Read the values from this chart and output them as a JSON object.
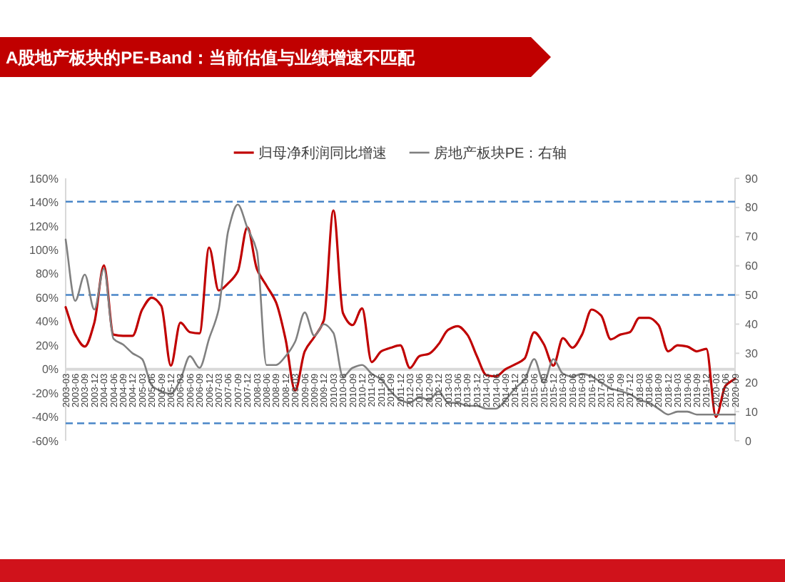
{
  "chart_data": {
    "type": "line",
    "title": "A股地产板块的PE-Band：当前估值与业绩增速不匹配",
    "categories": [
      "2003-03",
      "2003-06",
      "2003-09",
      "2003-12",
      "2004-03",
      "2004-06",
      "2004-09",
      "2004-12",
      "2005-03",
      "2005-06",
      "2005-09",
      "2005-12",
      "2006-03",
      "2006-06",
      "2006-09",
      "2006-12",
      "2007-03",
      "2007-06",
      "2007-09",
      "2007-12",
      "2008-03",
      "2008-06",
      "2008-09",
      "2008-12",
      "2009-03",
      "2009-06",
      "2009-09",
      "2009-12",
      "2010-03",
      "2010-06",
      "2010-09",
      "2010-12",
      "2011-03",
      "2011-06",
      "2011-09",
      "2011-12",
      "2012-03",
      "2012-06",
      "2012-09",
      "2012-12",
      "2013-03",
      "2013-06",
      "2013-09",
      "2013-12",
      "2014-03",
      "2014-06",
      "2014-09",
      "2014-12",
      "2015-03",
      "2015-06",
      "2015-09",
      "2015-12",
      "2016-03",
      "2016-06",
      "2016-09",
      "2016-12",
      "2017-03",
      "2017-06",
      "2017-09",
      "2017-12",
      "2018-03",
      "2018-06",
      "2018-09",
      "2018-12",
      "2019-03",
      "2019-06",
      "2019-09",
      "2019-12",
      "2020-03",
      "2020-06",
      "2020-09"
    ],
    "series": [
      {
        "name": "归母净利润同比增速",
        "color": "#c00000",
        "values": [
          52,
          29,
          19,
          39,
          87,
          29,
          28,
          28,
          50,
          60,
          53,
          3,
          39,
          31,
          30,
          102,
          66,
          72,
          82,
          119,
          84,
          70,
          56,
          25,
          -18,
          15,
          27,
          41,
          133,
          47,
          37,
          51,
          6,
          15,
          18,
          20,
          1,
          11,
          13,
          21,
          33,
          36,
          29,
          11,
          -5,
          -6,
          0,
          4,
          9,
          31,
          21,
          3,
          26,
          18,
          29,
          50,
          45,
          25,
          29,
          31,
          43,
          43,
          37,
          15,
          20,
          19,
          15,
          17,
          -40,
          -14,
          -8
        ]
      },
      {
        "name": "房地产板块PE：右轴",
        "color": "#808080",
        "axis": "y2",
        "values": [
          69,
          48,
          57,
          45,
          59,
          35,
          33,
          30,
          28,
          19,
          17,
          16,
          21,
          29,
          25,
          35,
          45,
          72,
          81,
          73,
          65,
          26,
          26,
          29,
          34,
          44,
          36,
          40,
          37,
          22,
          25,
          26,
          23,
          21,
          17,
          14,
          13,
          15,
          14,
          17,
          13,
          13,
          12,
          12,
          11,
          11,
          14,
          18,
          21,
          28,
          20,
          28,
          23,
          22,
          23,
          22,
          20,
          18,
          17,
          16,
          14,
          13,
          11,
          9,
          10,
          10,
          9,
          9,
          9,
          9,
          9
        ]
      }
    ],
    "ylim": [
      -60,
      160
    ],
    "yticks": [
      {
        "value": -60,
        "label": "-60%"
      },
      {
        "value": -40,
        "label": "-40%"
      },
      {
        "value": -20,
        "label": "-20%"
      },
      {
        "value": 0,
        "label": "0%"
      },
      {
        "value": 20,
        "label": "20%"
      },
      {
        "value": 40,
        "label": "40%"
      },
      {
        "value": 60,
        "label": "60%"
      },
      {
        "value": 80,
        "label": "80%"
      },
      {
        "value": 100,
        "label": "100%"
      },
      {
        "value": 120,
        "label": "120%"
      },
      {
        "value": 140,
        "label": "140%"
      },
      {
        "value": 160,
        "label": "160%"
      }
    ],
    "y2lim": [
      0,
      90
    ],
    "y2ticks": [
      0,
      10,
      20,
      30,
      40,
      50,
      60,
      70,
      80,
      90
    ],
    "legend": "top",
    "ref_lines": [
      {
        "axis": "y2",
        "value": 82,
        "color": "#4a86c8",
        "line_style": "dashed"
      },
      {
        "axis": "y2",
        "value": 50,
        "color": "#4a86c8",
        "line_style": "dashed"
      },
      {
        "axis": "y2",
        "value": 6,
        "color": "#4a86c8",
        "line_style": "dashed"
      }
    ]
  }
}
